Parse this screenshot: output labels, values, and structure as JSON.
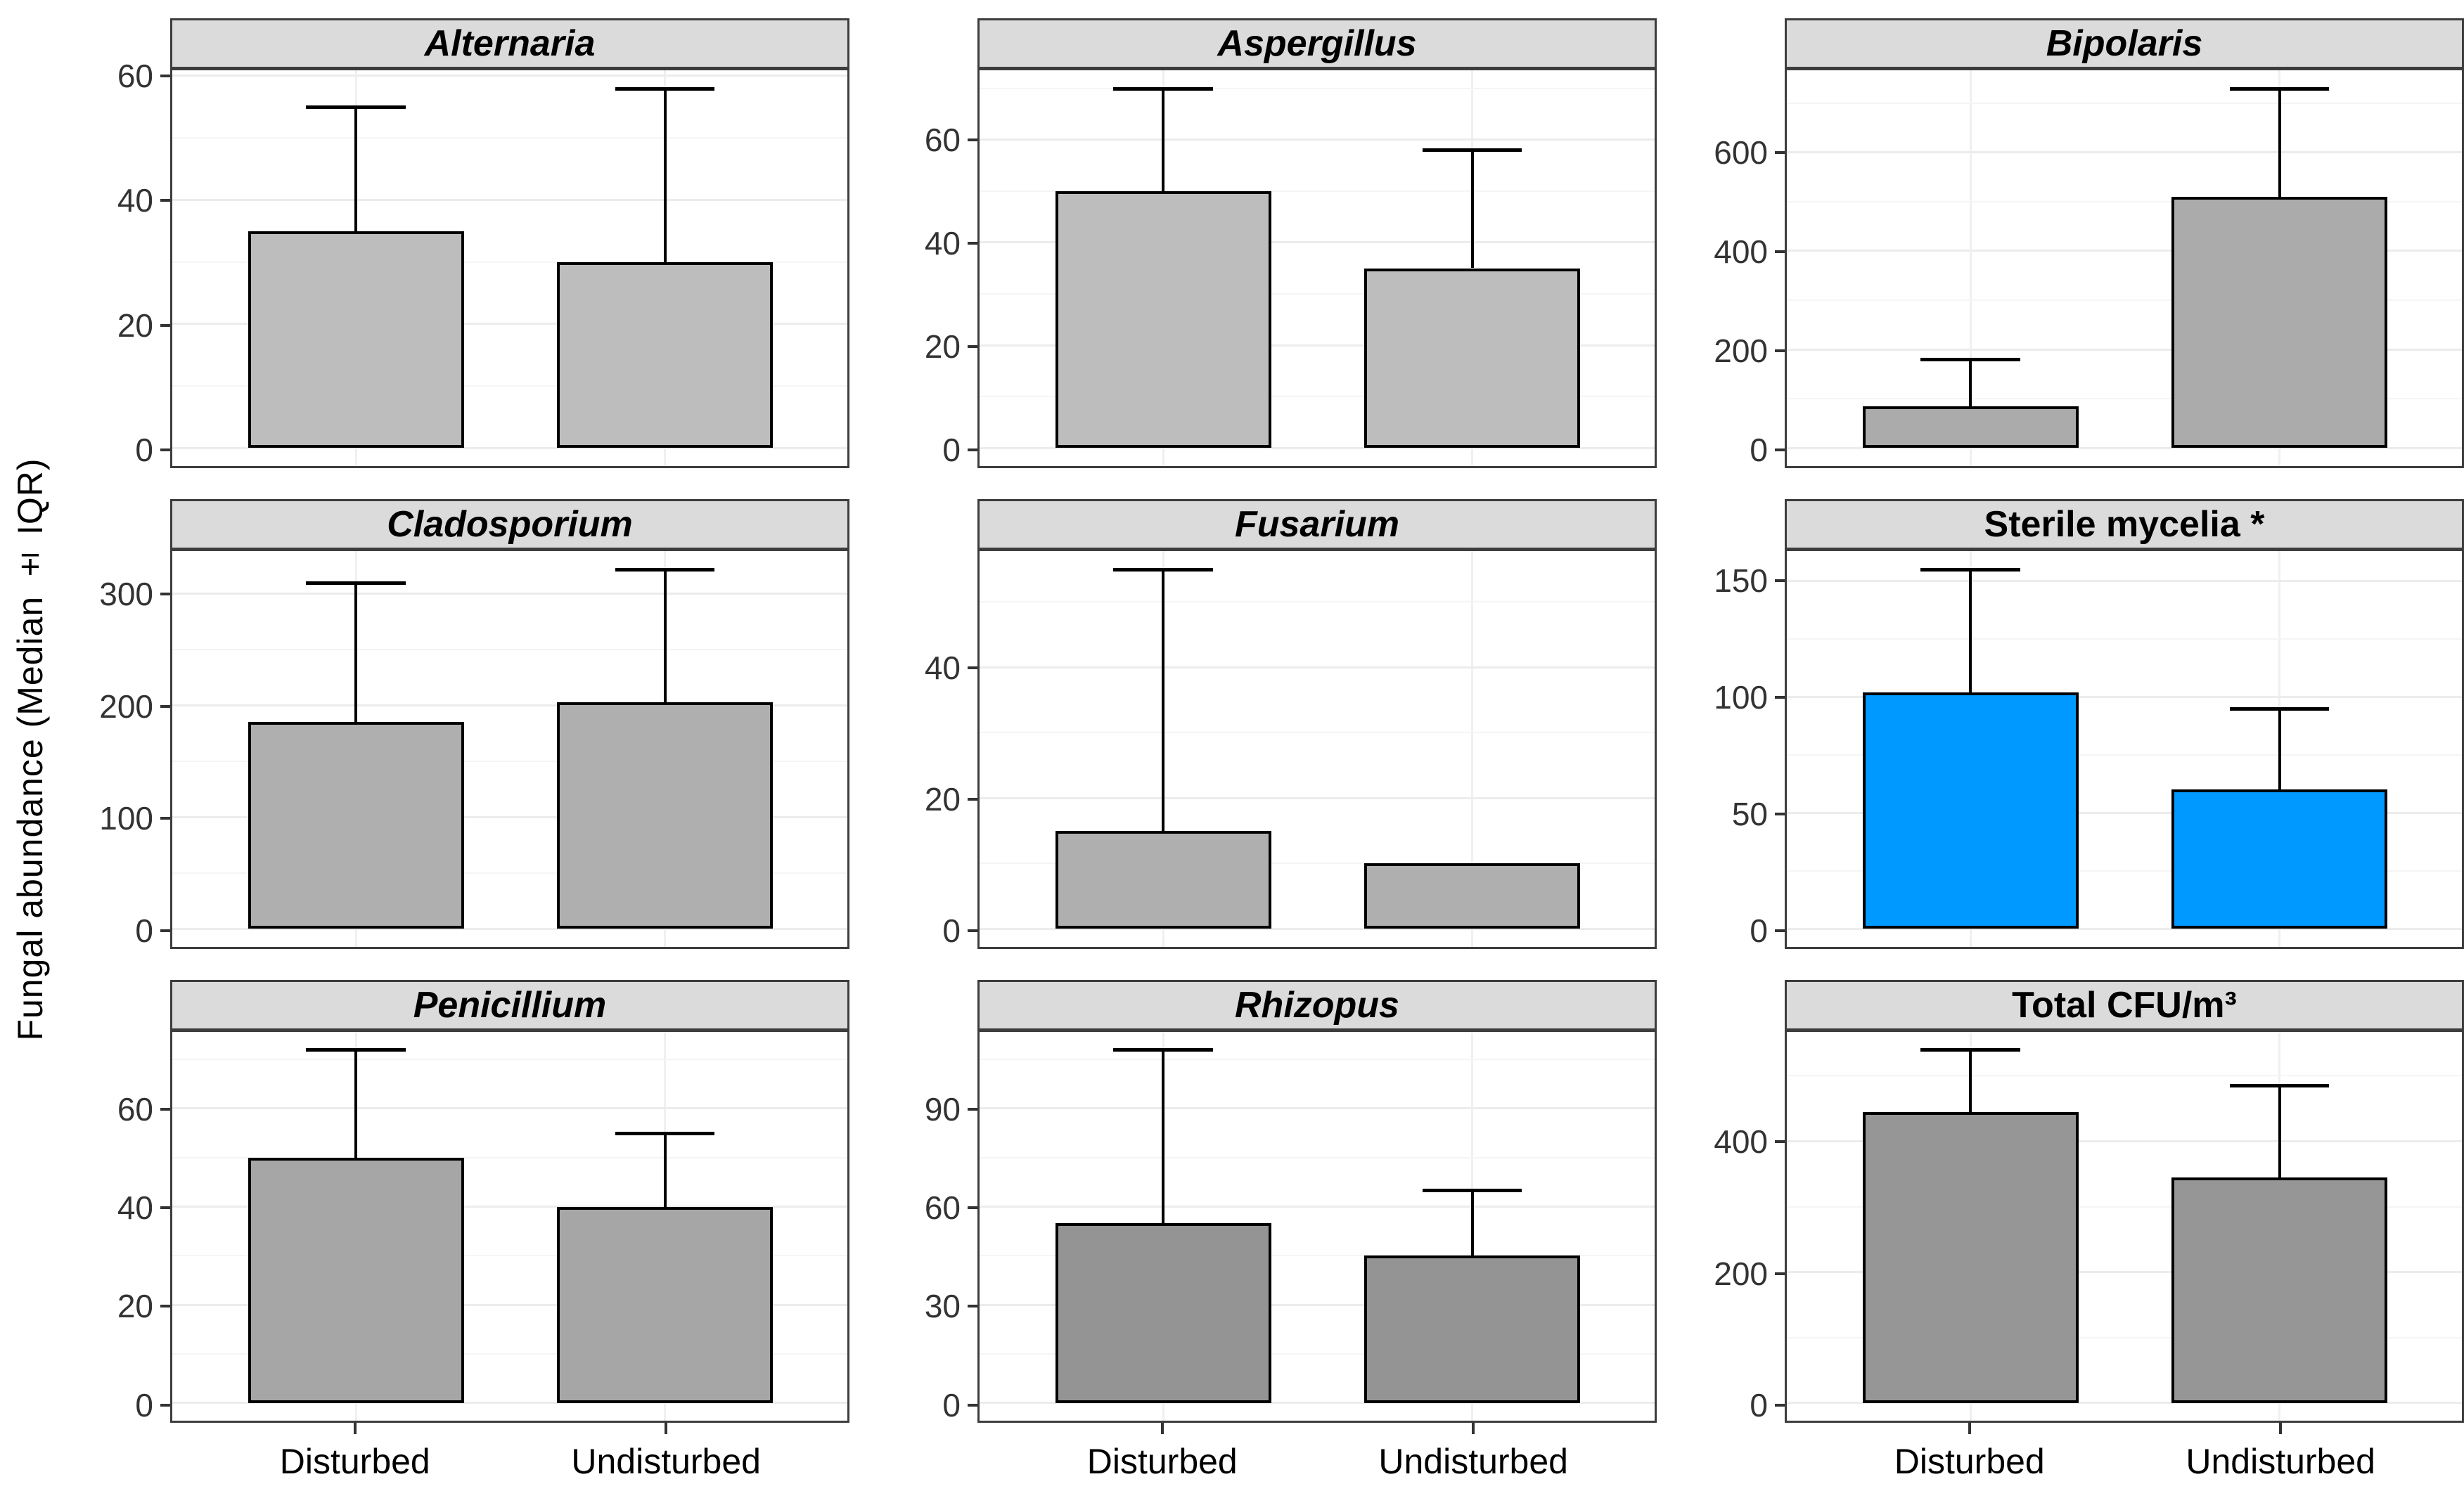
{
  "figure": {
    "ylabel": "Fungal abundance (Median ± IQR)"
  },
  "style": {
    "strip_background": "#DBDBDB",
    "panel_border": "#3D3D3D",
    "bar_outline": "#000000",
    "highlight_fill": "#0099FF",
    "default_fill": "#B3B3B3",
    "major_grid": "#ECECEC",
    "minor_grid": "#F5F5F5"
  },
  "chart_data": {
    "type": "bar",
    "error_bars": "upper whisker (median + IQR)",
    "ylabel": "Fungal abundance (Median ± IQR)",
    "categories": [
      "Disturbed",
      "Undisturbed"
    ],
    "legend": "none",
    "grid": "on",
    "panels": [
      {
        "title": "Alternaria",
        "italic": true,
        "fill": "#BDBDBD",
        "ticks": [
          0,
          20,
          40,
          60
        ],
        "ylim": [
          -2.9,
          60.9
        ],
        "values": [
          35,
          30
        ],
        "upper": [
          55,
          58
        ]
      },
      {
        "title": "Aspergillus",
        "italic": true,
        "fill": "#BDBDBD",
        "ticks": [
          0,
          20,
          40,
          60
        ],
        "ylim": [
          -3.5,
          73.5
        ],
        "values": [
          50,
          35
        ],
        "upper": [
          70,
          58
        ]
      },
      {
        "title": "Bipolaris",
        "italic": true,
        "fill": "#ABABAB",
        "ticks": [
          0,
          200,
          400,
          600
        ],
        "ylim": [
          -36.5,
          766.5
        ],
        "values": [
          85,
          510
        ],
        "upper": [
          180,
          730
        ]
      },
      {
        "title": "Cladosporium",
        "italic": true,
        "fill": "#AFAFAF",
        "ticks": [
          0,
          100,
          200,
          300
        ],
        "ylim": [
          -16.1,
          338.1
        ],
        "values": [
          185,
          203
        ],
        "upper": [
          310,
          322
        ]
      },
      {
        "title": "Fusarium",
        "italic": true,
        "fill": "#AFAFAF",
        "ticks": [
          0,
          20,
          40
        ],
        "ylim": [
          -2.75,
          57.75
        ],
        "values": [
          15,
          10
        ],
        "upper": [
          55,
          10
        ]
      },
      {
        "title": "Sterile mycelia *",
        "italic": false,
        "fill": "#0099FF",
        "ticks": [
          0,
          50,
          100,
          150
        ],
        "ylim": [
          -7.75,
          162.75
        ],
        "values": [
          102,
          60
        ],
        "upper": [
          155,
          95
        ]
      },
      {
        "title": "Penicillium",
        "italic": true,
        "fill": "#A6A6A6",
        "ticks": [
          0,
          20,
          40,
          60
        ],
        "ylim": [
          -3.6,
          75.6
        ],
        "values": [
          50,
          40
        ],
        "upper": [
          72,
          55
        ]
      },
      {
        "title": "Rhizopus",
        "italic": true,
        "fill": "#949494",
        "ticks": [
          0,
          30,
          60,
          90
        ],
        "ylim": [
          -5.4,
          113.4
        ],
        "values": [
          55,
          45
        ],
        "upper": [
          108,
          65
        ]
      },
      {
        "title": "Total CFU/m³",
        "italic": false,
        "fill": "#969696",
        "ticks": [
          0,
          200,
          400
        ],
        "ylim": [
          -27,
          567
        ],
        "values": [
          445,
          345
        ],
        "upper": [
          540,
          485
        ]
      }
    ],
    "layout": {
      "rows": 3,
      "cols": 3,
      "bar_centers_pct": [
        27.2,
        73.0
      ],
      "bar_width_pct": 32,
      "x_labels_bottom_row_only": true
    }
  }
}
